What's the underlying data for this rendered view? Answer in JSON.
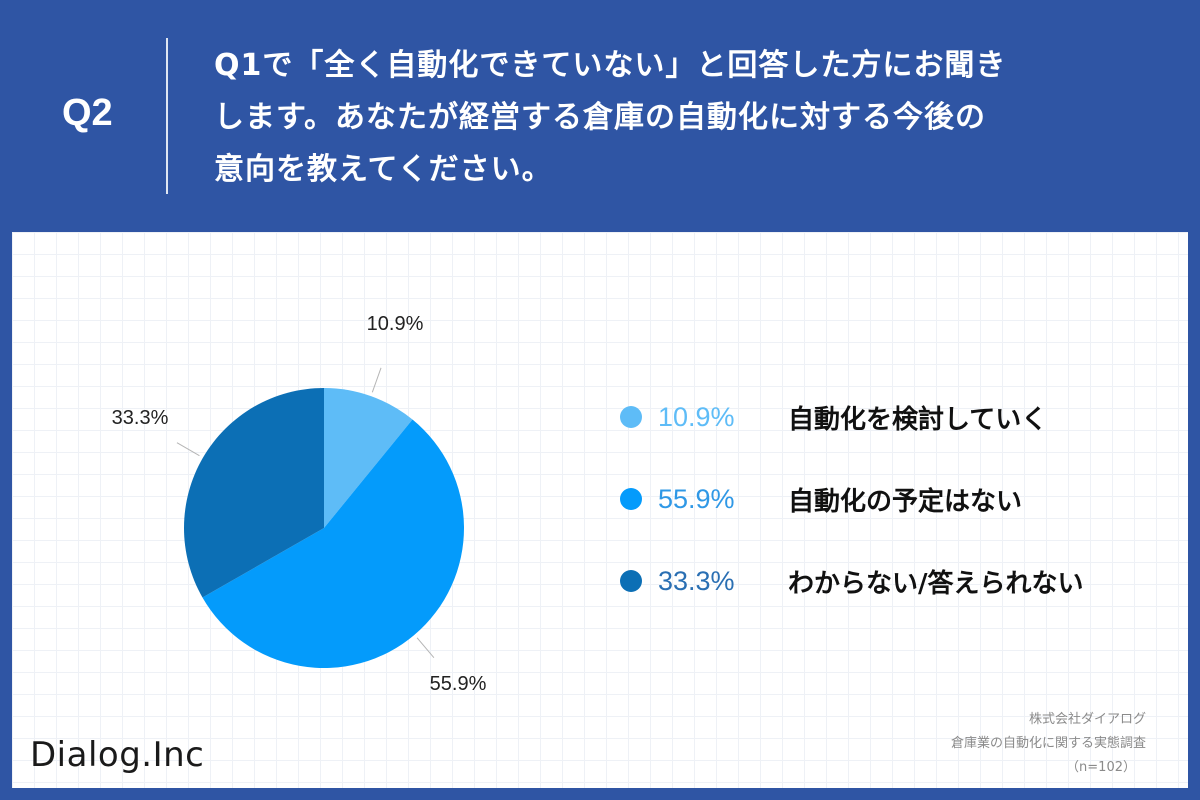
{
  "header": {
    "label": "Q2",
    "question_line1": "Q1で「全く自動化できていない」と回答した方にお聞き",
    "question_line2": "します。あなたが経営する倉庫の自動化に対する今後の",
    "question_line3": "意向を教えてください。"
  },
  "chart_data": {
    "type": "pie",
    "title": "",
    "slices": [
      {
        "label": "自動化を検討していく",
        "value": 10.9,
        "value_label": "10.9%",
        "color": "#5ebcf7"
      },
      {
        "label": "自動化の予定はない",
        "value": 55.9,
        "value_label": "55.9%",
        "color": "#049bfb"
      },
      {
        "label": "わからない/答えられない",
        "value": 33.3,
        "value_label": "33.3%",
        "color": "#0c6fb5"
      }
    ],
    "legend_position": "right",
    "legend_pct_colors": [
      "#5ebcf7",
      "#2f98e6",
      "#2a6fb3"
    ]
  },
  "footer": {
    "logo": "Dialog.Inc",
    "source_company": "株式会社ダイアログ",
    "source_survey": "倉庫業の自動化に関する実態調査",
    "source_n": "（n=102）"
  }
}
